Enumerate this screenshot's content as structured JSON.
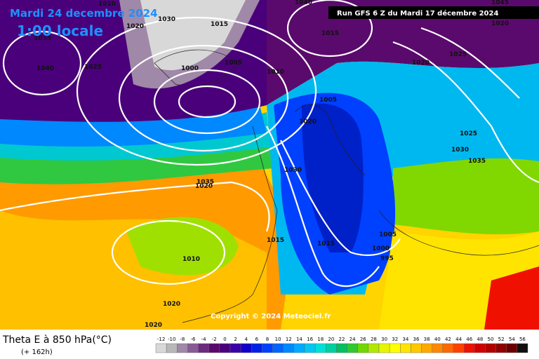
{
  "header": {
    "valid_date": "Mardi 24 decembre 2024",
    "local_time": "1:00 locale",
    "run": "Run GFS 6 Z du Mardi 17 décembre 2024"
  },
  "copyright": "Copyright © 2024 Meteociel.fr",
  "isobar_labels": [
    "1010",
    "1020",
    "1025",
    "1035",
    "1040",
    "1030",
    "1015",
    "1000",
    "1005",
    "1010",
    "1005",
    "1015",
    "1020",
    "1030",
    "1035",
    "1040",
    "1045",
    "1025",
    "1020",
    "1020",
    "1025",
    "1030",
    "1035",
    "1020",
    "1015",
    "1000",
    "995",
    "1005",
    "1020",
    "1015",
    "1010",
    "1020"
  ],
  "legend": {
    "title": "Theta E à 850 hPa(°C)",
    "lead_time": "(+ 162h)",
    "ticks": [
      -12,
      -10,
      -8,
      -6,
      -4,
      -2,
      0,
      2,
      4,
      6,
      8,
      10,
      12,
      14,
      16,
      18,
      20,
      22,
      24,
      26,
      28,
      30,
      32,
      34,
      36,
      38,
      40,
      42,
      44,
      46,
      48,
      50,
      52,
      54,
      56
    ],
    "colors": [
      "#d8d8d8",
      "#b8b8b8",
      "#a088a8",
      "#8a5a96",
      "#6c2a80",
      "#5a0a6c",
      "#4a007a",
      "#3a00a8",
      "#1000c8",
      "#0020e8",
      "#0040ff",
      "#0064ff",
      "#0088ff",
      "#00aaff",
      "#00c8f0",
      "#00e0d8",
      "#00d0a0",
      "#00c060",
      "#30c830",
      "#70d800",
      "#b0e800",
      "#e8f400",
      "#ffff00",
      "#ffe400",
      "#ffc800",
      "#ffa800",
      "#ff8800",
      "#ff6800",
      "#ff4000",
      "#f01000",
      "#d00000",
      "#b00000",
      "#900000",
      "#6a0000",
      "#101010"
    ]
  }
}
